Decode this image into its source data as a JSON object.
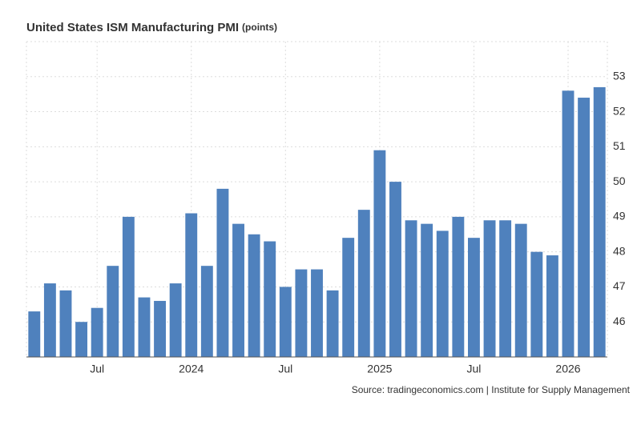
{
  "chart_data": {
    "type": "bar",
    "title": "United States ISM Manufacturing PMI",
    "subtitle": "(points)",
    "source": "Source: tradingeconomics.com | Institute for Supply Management",
    "categories": [
      null,
      null,
      null,
      null,
      "Jul",
      null,
      null,
      null,
      null,
      null,
      "2024",
      null,
      null,
      null,
      null,
      null,
      "Jul",
      null,
      null,
      null,
      null,
      null,
      "2025",
      null,
      null,
      null,
      null,
      null,
      "Jul",
      null,
      null,
      null,
      null,
      null,
      "2026",
      null,
      null
    ],
    "values": [
      46.3,
      47.1,
      46.9,
      46.0,
      46.4,
      47.6,
      49.0,
      46.7,
      46.6,
      47.1,
      49.1,
      47.6,
      49.8,
      48.8,
      48.5,
      48.3,
      47.0,
      47.5,
      47.5,
      46.9,
      48.4,
      49.2,
      50.9,
      50.0,
      48.9,
      48.8,
      48.6,
      49.0,
      48.4,
      48.9,
      48.9,
      48.8,
      48.0,
      47.9,
      52.6,
      52.4,
      52.7
    ],
    "color": "#4f81bd",
    "ylim": [
      45,
      54
    ],
    "yticks": [
      46,
      47,
      48,
      49,
      50,
      51,
      52,
      53
    ],
    "grid": true
  }
}
